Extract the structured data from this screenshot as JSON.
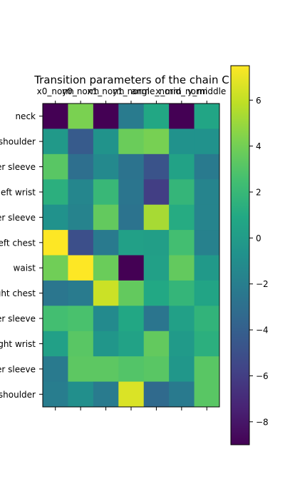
{
  "chart_data": {
    "type": "heatmap",
    "title": "Transition parameters of the chain C",
    "xlabel": "",
    "ylabel": "",
    "x_tick_labels": [
      "x0_norm",
      "y0_norm",
      "x1_norm",
      "y1_norm",
      "angle_norm",
      "x_mid_norm",
      "y_middle"
    ],
    "y_tick_labels": [
      "neck",
      "left shoulder",
      "left upper sleeve",
      "left wrist",
      "left lower sleeve",
      "left chest",
      "waist",
      "right chest",
      "right upper sleeve",
      "right wrist",
      "right lower sleeve",
      "right shoulder"
    ],
    "values": [
      [
        -9.0,
        4.2,
        -9.0,
        -2.2,
        0.8,
        -9.0,
        0.7
      ],
      [
        -0.2,
        -4.3,
        -0.6,
        3.7,
        4.1,
        -0.7,
        -0.7
      ],
      [
        3.2,
        -3.0,
        -1.3,
        -2.7,
        -4.8,
        0.5,
        -2.3
      ],
      [
        1.4,
        -1.5,
        2.0,
        -2.6,
        -6.0,
        1.8,
        -1.6
      ],
      [
        -0.7,
        -1.7,
        3.5,
        -2.7,
        5.3,
        1.1,
        -1.6
      ],
      [
        7.5,
        -5.0,
        -2.3,
        0.3,
        0.2,
        2.5,
        -1.8
      ],
      [
        3.9,
        7.5,
        3.7,
        -9.0,
        0.3,
        3.5,
        -0.2
      ],
      [
        -2.5,
        -2.2,
        6.2,
        3.5,
        0.9,
        1.8,
        0.6
      ],
      [
        2.5,
        2.7,
        -1.2,
        0.8,
        -2.6,
        0.3,
        1.7
      ],
      [
        0.3,
        3.2,
        -0.4,
        0.5,
        3.5,
        -0.1,
        1.4
      ],
      [
        -2.3,
        3.3,
        3.3,
        3.0,
        3.2,
        -0.3,
        3.2
      ],
      [
        -2.1,
        -0.9,
        -2.2,
        6.6,
        -3.3,
        -2.3,
        3.2
      ]
    ],
    "colorbar": {
      "vmin": -9.0,
      "vmax": 7.5,
      "ticks": [
        -8,
        -6,
        -4,
        -2,
        0,
        2,
        4,
        6
      ],
      "tick_labels": [
        "−8",
        "−6",
        "−4",
        "−2",
        "0",
        "2",
        "4",
        "6"
      ],
      "colormap": "viridis"
    },
    "grid": false
  }
}
